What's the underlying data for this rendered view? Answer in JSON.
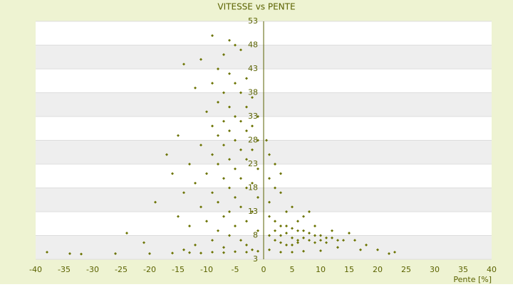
{
  "chart_data": {
    "type": "scatter",
    "title": "VITESSE vs PENTE",
    "x_label": "Pente [%]",
    "color": "#6b7300",
    "background": "#eef3d2",
    "band_color": "#eeeeee",
    "grid": true,
    "xlim": [
      -40,
      40
    ],
    "xticks": [
      -40,
      -35,
      -30,
      -25,
      -20,
      -15,
      -10,
      -5,
      0,
      5,
      10,
      15,
      20,
      25,
      30,
      35,
      40
    ],
    "ylim": [
      3,
      53
    ],
    "yticks": [
      53,
      48,
      43,
      38,
      33,
      28,
      23,
      18,
      13,
      8,
      3
    ],
    "x": [
      -9,
      -6,
      -5,
      -7,
      -4,
      -11,
      -14,
      -8,
      -6,
      -3,
      -9,
      -5,
      -12,
      -7,
      -4,
      -2,
      -8,
      -6,
      -3,
      -10,
      -5,
      -1,
      -7,
      -4,
      -9,
      -2,
      -6,
      -3,
      -15,
      -8,
      -5,
      -1,
      -11,
      -7,
      -4,
      -2,
      -17,
      -9,
      -6,
      -3,
      -13,
      -8,
      -5,
      -1,
      -16,
      -10,
      -7,
      -4,
      -2,
      -12,
      -6,
      -3,
      -14,
      -9,
      -5,
      -1,
      -19,
      -8,
      -4,
      -11,
      -6,
      -2,
      -15,
      -7,
      -10,
      -3,
      -5,
      -13,
      -8,
      -1,
      -24,
      -6,
      -4,
      -9,
      -21,
      -12,
      -3,
      -7,
      -14,
      -2,
      1,
      2,
      3,
      4,
      5,
      6,
      7,
      8,
      9,
      10,
      11,
      12,
      13,
      14,
      16,
      2,
      3,
      4,
      5,
      6,
      7,
      8,
      9,
      10,
      11,
      1,
      2,
      3,
      4,
      5,
      6,
      1,
      2,
      3,
      4,
      5,
      7,
      8,
      1,
      2,
      0.5,
      1,
      3,
      6,
      9,
      12,
      15,
      18,
      20,
      23,
      22,
      17,
      13,
      1,
      3,
      5,
      7,
      10,
      -38,
      -34,
      -32,
      -26,
      -20,
      -16,
      -13,
      -11,
      -9,
      -7,
      -5,
      -3,
      -1
    ],
    "values": [
      50,
      49,
      48,
      46,
      47,
      45,
      44,
      43,
      42,
      41,
      40,
      40,
      39,
      38,
      38,
      37,
      36,
      35,
      35,
      34,
      33,
      33,
      32,
      32,
      31,
      31,
      30,
      30,
      29,
      29,
      28,
      28,
      27,
      27,
      26,
      26,
      25,
      25,
      24,
      24,
      23,
      23,
      22,
      22,
      21,
      21,
      20,
      20,
      19,
      19,
      18,
      18,
      17,
      17,
      16,
      16,
      15,
      15,
      14,
      14,
      13,
      13,
      12,
      12,
      11,
      11,
      10,
      10,
      9,
      9,
      8.5,
      8,
      7,
      7,
      6.5,
      6,
      6,
      5.5,
      5,
      5,
      12,
      11,
      10,
      10,
      9.5,
      9,
      9,
      8.5,
      8,
      8,
      7.5,
      7.5,
      7,
      7,
      7,
      9,
      8,
      8.5,
      7.5,
      7,
      7.5,
      7,
      6.5,
      7,
      6.5,
      8,
      7,
      6.5,
      6,
      6,
      6.5,
      15,
      18,
      21,
      13,
      14,
      12,
      13,
      25,
      23,
      28,
      20,
      17,
      11,
      10,
      9,
      8.5,
      6,
      5,
      4.5,
      4.2,
      5,
      5.5,
      5,
      4.5,
      4.5,
      4.7,
      4.8,
      4.5,
      4.2,
      4.1,
      4.2,
      4.2,
      4.3,
      4.4,
      4.3,
      4.5,
      4.4,
      4.6,
      4.5,
      4.7
    ]
  }
}
